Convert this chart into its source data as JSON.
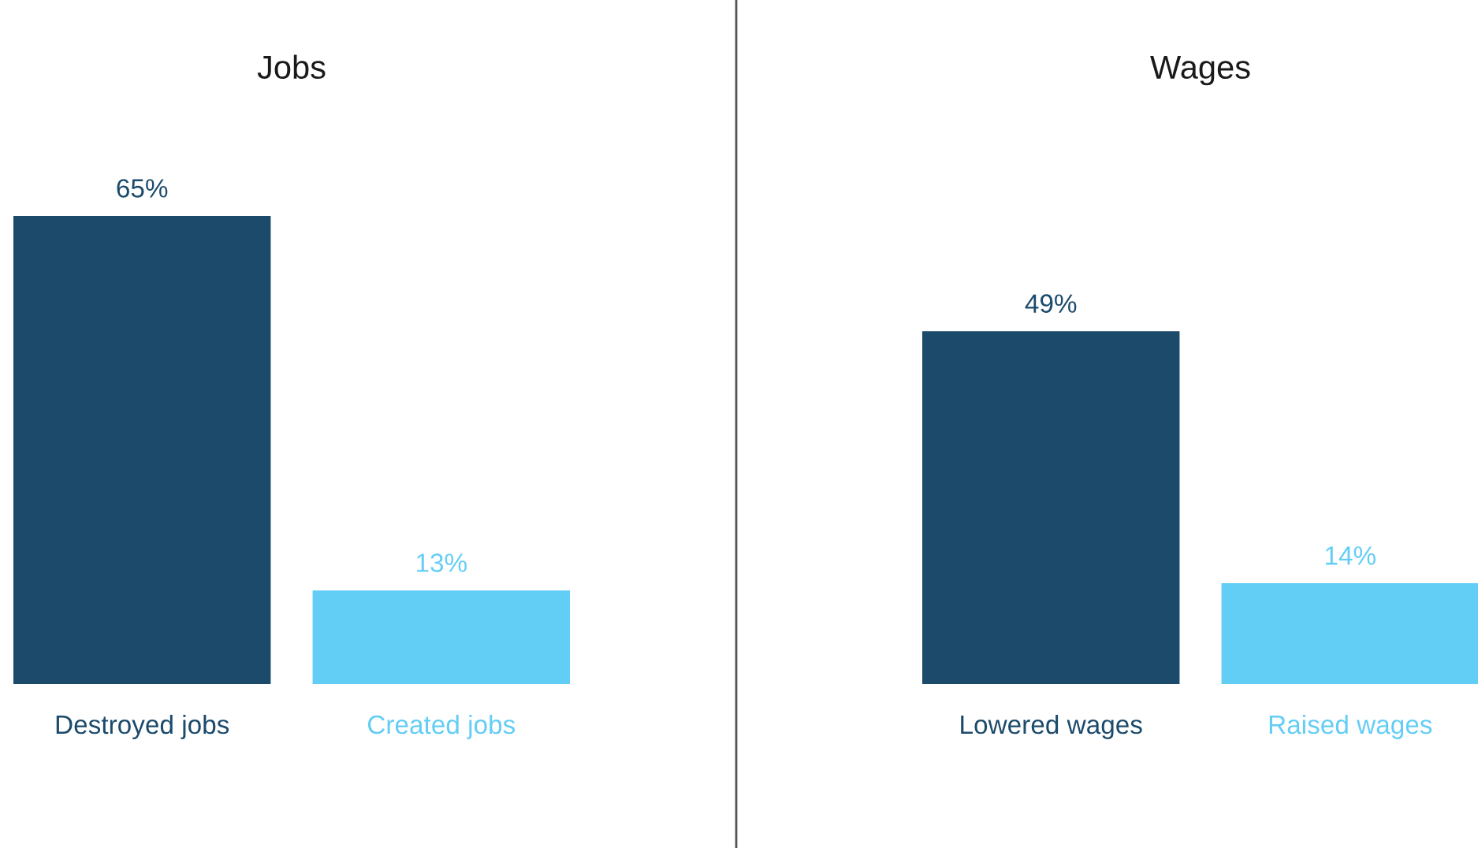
{
  "chart_data": [
    {
      "type": "bar",
      "title": "Jobs",
      "categories": [
        "Destroyed jobs",
        "Created jobs"
      ],
      "values": [
        65,
        13
      ],
      "colors": [
        "#1b4a6b",
        "#62cdf5"
      ],
      "value_labels": [
        "65%",
        "13%"
      ]
    },
    {
      "type": "bar",
      "title": "Wages",
      "categories": [
        "Lowered wages",
        "Raised wages"
      ],
      "values": [
        49,
        14
      ],
      "colors": [
        "#1b4a6b",
        "#62cdf5"
      ],
      "value_labels": [
        "49%",
        "14%"
      ]
    }
  ]
}
